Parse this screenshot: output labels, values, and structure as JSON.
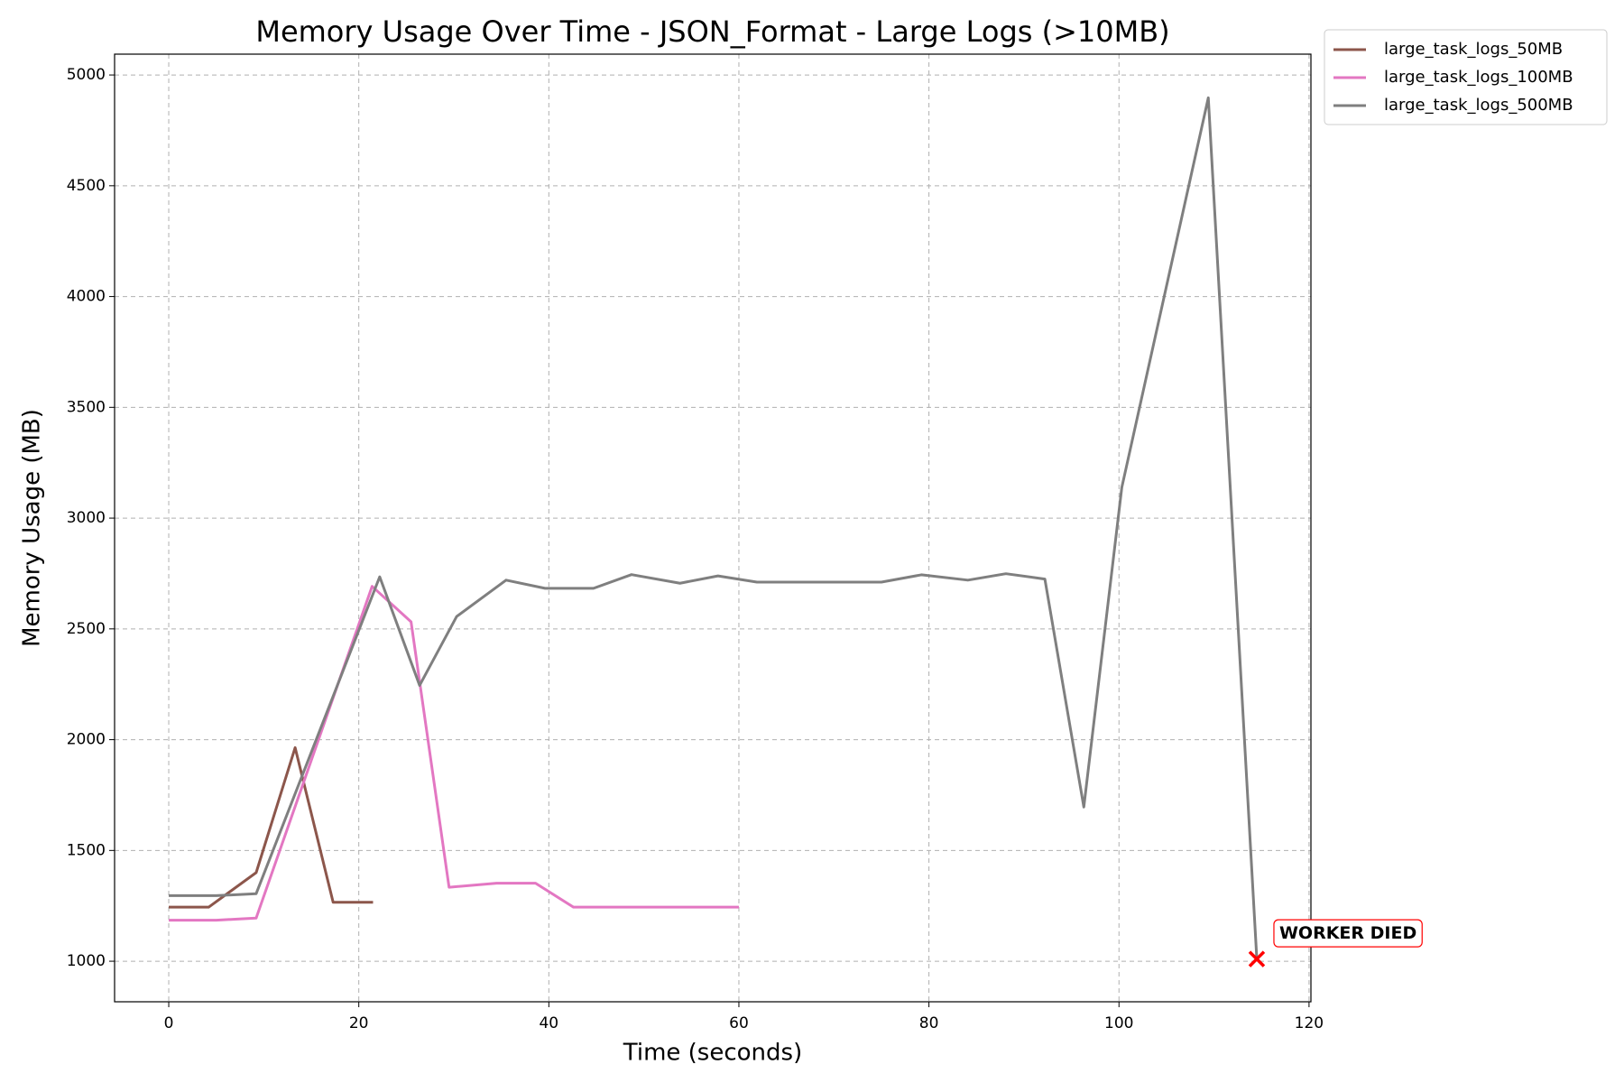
{
  "chart_data": {
    "type": "line",
    "title": "Memory Usage Over Time - JSON_Format - Large Logs (>10MB)",
    "x_label": "Time (seconds)",
    "y_label": "Memory Usage (MB)",
    "xlim": [
      -5.7,
      120.2
    ],
    "ylim": [
      817,
      5094
    ],
    "xticks": [
      0,
      20,
      40,
      60,
      80,
      100,
      120
    ],
    "yticks": [
      1000,
      1500,
      2000,
      2500,
      3000,
      3500,
      4000,
      4500,
      5000
    ],
    "grid": true,
    "legend": "outside upper right",
    "series": [
      {
        "name": "large_task_logs_50MB",
        "color": "#8c564b",
        "x": [
          0,
          4.2,
          9.2,
          13.3,
          17.3,
          21.5
        ],
        "values": [
          1244,
          1244,
          1400,
          1964,
          1266,
          1266
        ]
      },
      {
        "name": "large_task_logs_100MB",
        "color": "#e377c2",
        "x": [
          0,
          5,
          9.2,
          21.4,
          25.5,
          29.5,
          34.5,
          38.6,
          42.6,
          47.6,
          60
        ],
        "values": [
          1185,
          1185,
          1195,
          2692,
          2532,
          1334,
          1352,
          1352,
          1244,
          1244,
          1244
        ]
      },
      {
        "name": "large_task_logs_500MB",
        "color": "#7f7f7f",
        "x": [
          0,
          5,
          9.2,
          22.2,
          26.4,
          30.3,
          35.5,
          39.6,
          44.7,
          48.7,
          53.8,
          57.8,
          61.9,
          75,
          79.2,
          84.1,
          88.1,
          92.2,
          96.3,
          100.3,
          109.4,
          114.5
        ],
        "values": [
          1296,
          1296,
          1305,
          2735,
          2245,
          2556,
          2720,
          2683,
          2683,
          2745,
          2706,
          2739,
          2711,
          2711,
          2744,
          2720,
          2749,
          2725,
          1696,
          3139,
          4897,
          1014
        ]
      }
    ],
    "annotations": [
      {
        "text": "WORKER DIED",
        "x": 114.5,
        "y": 1010,
        "color": "#ff0000"
      }
    ]
  }
}
